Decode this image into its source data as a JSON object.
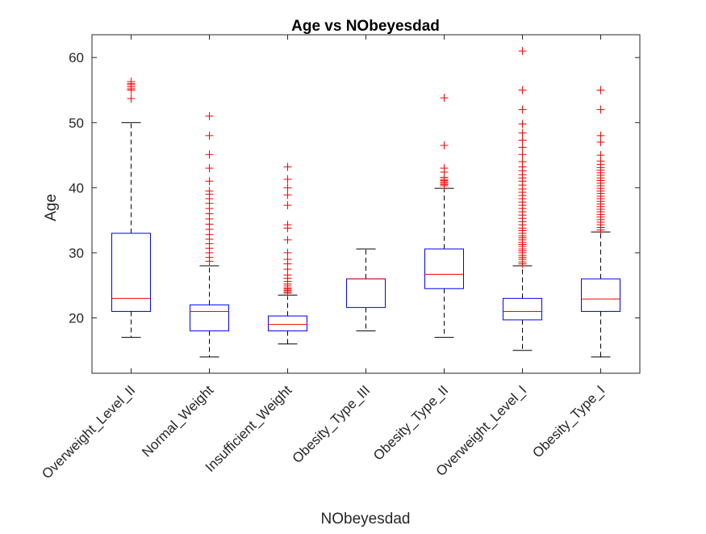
{
  "chart_data": {
    "type": "box",
    "title": "Age vs NObeyesdad",
    "xlabel": "NObeyesdad",
    "ylabel": "Age",
    "ylim": [
      11.5,
      63.5
    ],
    "yticks": [
      20,
      30,
      40,
      50,
      60
    ],
    "grid": false,
    "legend": "none",
    "colors": {
      "box": "#0000ff",
      "median": "#ff0000",
      "whisker": "#000000",
      "outlier": "#ff0000",
      "axes": "#262626"
    },
    "categories": [
      "Overweight_Level_II",
      "Normal_Weight",
      "Insufficient_Weight",
      "Obesity_Type_III",
      "Obesity_Type_II",
      "Overweight_Level_I",
      "Obesity_Type_I"
    ],
    "boxes": [
      {
        "min": 17.0,
        "q1": 21.0,
        "median": 23.0,
        "q3": 33.0,
        "max": 50.0,
        "outliers": [
          53.7,
          55.0,
          55.2,
          55.5,
          55.8,
          56.0,
          56.3
        ]
      },
      {
        "min": 14.0,
        "q1": 18.0,
        "median": 21.0,
        "q3": 22.0,
        "max": 28.0,
        "outliers": [
          28.7,
          29.3,
          30.0,
          30.7,
          31.4,
          32.1,
          32.8,
          33.6,
          34.4,
          35.2,
          36.0,
          36.8,
          37.6,
          38.3,
          39.0,
          39.5,
          41.0,
          43.0,
          45.1,
          48.0,
          51.0
        ]
      },
      {
        "min": 16.0,
        "q1": 18.0,
        "median": 19.0,
        "q3": 20.3,
        "max": 23.5,
        "outliers": [
          23.8,
          24.0,
          24.2,
          24.4,
          24.6,
          24.9,
          25.2,
          25.6,
          26.1,
          26.6,
          27.5,
          28.3,
          29.0,
          30.0,
          32.0,
          33.8,
          34.3,
          37.3,
          38.9,
          40.0,
          41.3,
          43.2
        ]
      },
      {
        "min": 18.0,
        "q1": 21.6,
        "median": 26.0,
        "q3": 26.0,
        "max": 30.6,
        "outliers": []
      },
      {
        "min": 17.0,
        "q1": 24.5,
        "median": 26.7,
        "q3": 30.6,
        "max": 39.9,
        "outliers": [
          40.3,
          40.5,
          40.7,
          40.9,
          41.1,
          41.3,
          41.6,
          42.4,
          43.0,
          46.5,
          53.8
        ]
      },
      {
        "min": 15.0,
        "q1": 19.7,
        "median": 21.0,
        "q3": 23.0,
        "max": 28.0,
        "outliers": [
          28.3,
          28.6,
          29.0,
          29.3,
          29.6,
          30.0,
          30.3,
          30.6,
          31.0,
          31.3,
          31.6,
          32.0,
          32.3,
          32.6,
          33.0,
          33.4,
          33.8,
          34.3,
          34.8,
          35.3,
          35.8,
          36.3,
          36.8,
          37.3,
          37.8,
          38.3,
          38.8,
          39.3,
          39.8,
          40.4,
          41.0,
          41.5,
          42.0,
          42.6,
          43.2,
          44.0,
          45.1,
          46.2,
          47.3,
          48.4,
          49.8,
          52.0,
          55.0,
          61.0
        ]
      },
      {
        "min": 14.0,
        "q1": 21.0,
        "median": 22.9,
        "q3": 26.0,
        "max": 33.2,
        "outliers": [
          33.5,
          33.9,
          34.3,
          34.7,
          35.1,
          35.5,
          35.9,
          36.3,
          36.7,
          37.1,
          37.5,
          37.9,
          38.3,
          38.7,
          39.1,
          39.5,
          39.9,
          40.3,
          40.7,
          41.1,
          41.5,
          41.9,
          42.3,
          42.7,
          43.1,
          43.6,
          44.1,
          45.0,
          47.0,
          48.0,
          52.0,
          55.0
        ]
      }
    ]
  }
}
